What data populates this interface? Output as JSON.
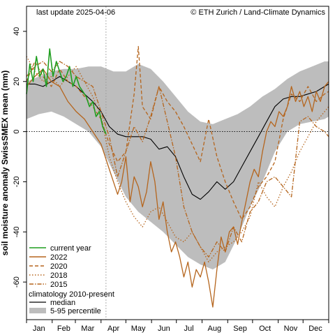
{
  "chart_data": {
    "type": "line",
    "header_left": "last update 2025-04-06",
    "header_right": "© ETH Zurich / Land-Climate Dynamics",
    "ylabel": "soil moisture anomaly SwissSMEX mean (mm)",
    "ylim": [
      -75,
      50
    ],
    "xlim": [
      0,
      365
    ],
    "yticks": [
      -60,
      -40,
      -20,
      0,
      20,
      40
    ],
    "month_ticks": [
      0,
      31,
      59,
      90,
      120,
      151,
      181,
      212,
      243,
      273,
      304,
      334,
      365
    ],
    "months": [
      {
        "label": "Jan",
        "x": 15
      },
      {
        "label": "Feb",
        "x": 45
      },
      {
        "label": "Mar",
        "x": 74
      },
      {
        "label": "Apr",
        "x": 105
      },
      {
        "label": "May",
        "x": 135
      },
      {
        "label": "Jun",
        "x": 166
      },
      {
        "label": "Jul",
        "x": 196
      },
      {
        "label": "Aug",
        "x": 227
      },
      {
        "label": "Sep",
        "x": 258
      },
      {
        "label": "Oct",
        "x": 288
      },
      {
        "label": "Nov",
        "x": 319
      },
      {
        "label": "Dec",
        "x": 349
      }
    ],
    "current_day_marker": 96,
    "zero_line": 0,
    "band_5_95": {
      "x": [
        0,
        15,
        30,
        45,
        60,
        75,
        90,
        105,
        120,
        135,
        150,
        165,
        180,
        195,
        210,
        225,
        240,
        255,
        270,
        285,
        300,
        315,
        330,
        345,
        360,
        365
      ],
      "upper": [
        20,
        22,
        24,
        25,
        25,
        26,
        26,
        24,
        24,
        27,
        25,
        20,
        14,
        8,
        4,
        3,
        5,
        7,
        10,
        14,
        17,
        21,
        24,
        26,
        28,
        28
      ],
      "lower": [
        5,
        7,
        8,
        6,
        3,
        0,
        -6,
        -16,
        -26,
        -32,
        -36,
        -40,
        -45,
        -50,
        -53,
        -55,
        -52,
        -42,
        -30,
        -20,
        -8,
        0,
        3,
        4,
        5,
        6
      ]
    },
    "series": [
      {
        "name": "current year",
        "color": "#1f9e1f",
        "style": "solid",
        "x": [
          0,
          4,
          8,
          12,
          16,
          20,
          24,
          28,
          32,
          36,
          40,
          44,
          48,
          52,
          56,
          60,
          64,
          68,
          72,
          76,
          80,
          84,
          88,
          92,
          96
        ],
        "y": [
          15,
          27,
          20,
          30,
          22,
          25,
          18,
          33,
          22,
          28,
          24,
          20,
          22,
          26,
          18,
          22,
          18,
          16,
          14,
          10,
          12,
          6,
          8,
          2,
          -1
        ]
      },
      {
        "name": "2022",
        "color": "#b5651d",
        "style": "solid",
        "x": [
          0,
          10,
          20,
          30,
          40,
          50,
          60,
          70,
          80,
          90,
          100,
          110,
          115,
          120,
          125,
          130,
          135,
          140,
          145,
          150,
          155,
          160,
          165,
          170,
          175,
          180,
          185,
          190,
          195,
          200,
          205,
          210,
          215,
          220,
          225,
          230,
          235,
          240,
          245,
          250,
          255,
          260,
          265,
          270,
          275,
          280,
          285,
          290,
          295,
          300,
          305,
          310,
          315,
          320,
          325,
          330,
          335,
          340,
          345,
          350,
          355,
          360,
          365
        ],
        "y": [
          18,
          22,
          25,
          20,
          18,
          12,
          8,
          5,
          0,
          -5,
          -15,
          -25,
          -20,
          -10,
          -28,
          -18,
          -22,
          -30,
          -24,
          -12,
          -20,
          -35,
          -28,
          -40,
          -48,
          -44,
          -50,
          -58,
          -52,
          -62,
          -55,
          -58,
          -52,
          -60,
          -70,
          -55,
          -42,
          -48,
          -40,
          -38,
          -45,
          -36,
          -28,
          -20,
          -15,
          -18,
          -8,
          0,
          4,
          2,
          8,
          6,
          10,
          18,
          12,
          16,
          10,
          14,
          8,
          16,
          12,
          18,
          20
        ]
      },
      {
        "name": "2020",
        "color": "#b5651d",
        "style": "dashed",
        "x": [
          0,
          10,
          20,
          30,
          40,
          50,
          60,
          70,
          80,
          90,
          100,
          110,
          120,
          130,
          135,
          140,
          150,
          160,
          170,
          180,
          190,
          200,
          210,
          220,
          230,
          240,
          250,
          260,
          270,
          280,
          290,
          300,
          310,
          320,
          330,
          340,
          350,
          360,
          365
        ],
        "y": [
          20,
          28,
          22,
          18,
          25,
          20,
          18,
          14,
          10,
          5,
          -5,
          -12,
          -8,
          15,
          34,
          10,
          5,
          18,
          12,
          8,
          2,
          -5,
          -12,
          5,
          -10,
          -20,
          -28,
          -35,
          -30,
          -22,
          -18,
          -12,
          5,
          15,
          12,
          18,
          12,
          15,
          16
        ]
      },
      {
        "name": "2018",
        "color": "#b5651d",
        "style": "dotted",
        "x": [
          0,
          10,
          20,
          30,
          40,
          50,
          60,
          70,
          80,
          90,
          100,
          110,
          120,
          130,
          140,
          150,
          160,
          170,
          180,
          190,
          200,
          210,
          220,
          230,
          240,
          250,
          260,
          270,
          280,
          290,
          300,
          310,
          320,
          330,
          340,
          350,
          360,
          365
        ],
        "y": [
          30,
          24,
          20,
          22,
          18,
          22,
          26,
          20,
          14,
          6,
          -10,
          -20,
          -28,
          -34,
          -38,
          -32,
          -30,
          -36,
          -42,
          -44,
          -40,
          -46,
          -52,
          -48,
          -46,
          -44,
          -40,
          -34,
          -20,
          -26,
          -30,
          -22,
          -16,
          -8,
          -2,
          4,
          8,
          10
        ]
      },
      {
        "name": "2015",
        "color": "#b5651d",
        "style": "dashdot",
        "x": [
          0,
          10,
          20,
          30,
          40,
          50,
          60,
          70,
          80,
          90,
          100,
          110,
          120,
          130,
          140,
          150,
          160,
          170,
          180,
          190,
          200,
          210,
          220,
          230,
          240,
          250,
          260,
          270,
          280,
          290,
          300,
          310,
          320,
          330,
          340,
          350,
          360,
          365
        ],
        "y": [
          22,
          26,
          28,
          24,
          28,
          26,
          22,
          20,
          18,
          8,
          -2,
          -18,
          -8,
          2,
          -4,
          6,
          18,
          4,
          -10,
          -30,
          -40,
          -46,
          -50,
          -44,
          -48,
          -38,
          -44,
          -32,
          -28,
          -20,
          -18,
          -22,
          -26,
          4,
          6,
          2,
          0,
          -2
        ]
      },
      {
        "name": "median",
        "color": "#000000",
        "style": "solid",
        "x": [
          0,
          10,
          20,
          30,
          40,
          50,
          60,
          70,
          80,
          90,
          100,
          110,
          120,
          130,
          140,
          150,
          160,
          170,
          180,
          190,
          200,
          210,
          220,
          230,
          240,
          250,
          260,
          270,
          280,
          290,
          300,
          310,
          320,
          330,
          340,
          350,
          360,
          365
        ],
        "y": [
          19,
          19,
          18,
          20,
          22,
          20,
          18,
          15,
          12,
          8,
          2,
          -1,
          -2,
          -2,
          -2,
          -3,
          -7,
          -6,
          -10,
          -18,
          -25,
          -27,
          -24,
          -20,
          -23,
          -20,
          -14,
          -8,
          -2,
          4,
          10,
          13,
          14,
          14,
          15,
          16,
          18,
          19
        ]
      }
    ],
    "legend": {
      "position": "bottom-left",
      "climatology_title": "climatology 2010-present",
      "median_label": "median",
      "band_label": "5-95 percentile"
    }
  }
}
